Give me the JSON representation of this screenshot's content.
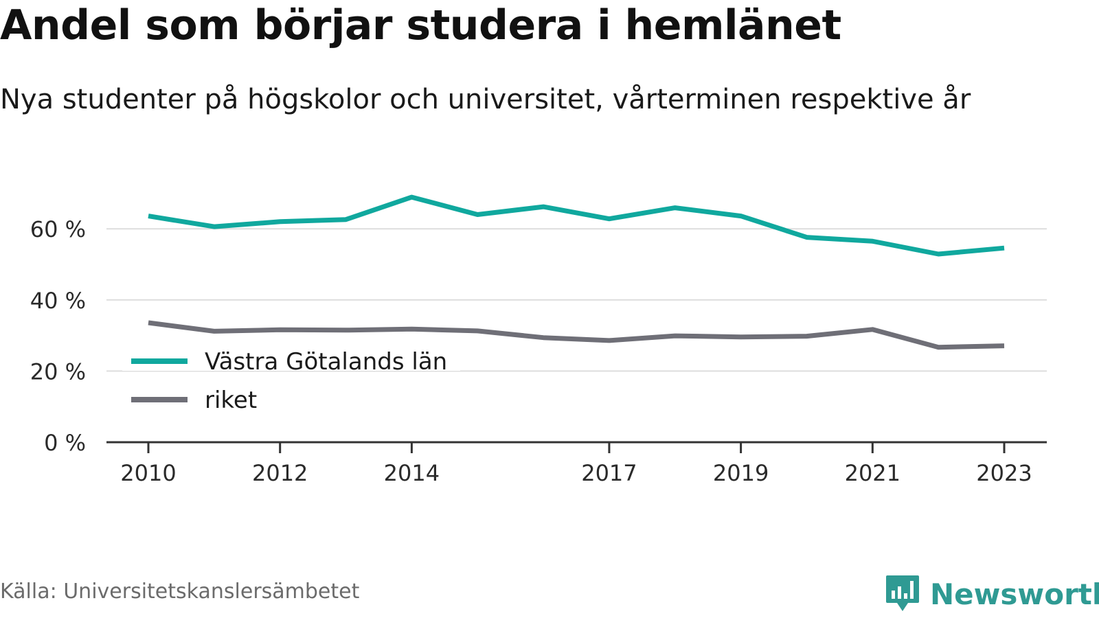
{
  "chart_data": {
    "type": "line",
    "title": "Andel som börjar studera i hemlänet",
    "subtitle": "Nya studenter på högskolor och universitet, vårterminen respektive år",
    "x": [
      2010,
      2011,
      2012,
      2013,
      2014,
      2015,
      2016,
      2017,
      2018,
      2019,
      2020,
      2021,
      2022,
      2023
    ],
    "x_tick_labels": [
      "2010",
      "2012",
      "2014",
      "2017",
      "2019",
      "2021",
      "2023"
    ],
    "x_tick_values": [
      2010,
      2012,
      2014,
      2017,
      2019,
      2021,
      2023
    ],
    "y_ticks": [
      0,
      20,
      40,
      60
    ],
    "y_tick_labels": [
      "0 %",
      "20 %",
      "40 %",
      "60 %"
    ],
    "ylim": [
      0,
      70
    ],
    "grid": "horizontal",
    "legend_position": "bottom-left",
    "series": [
      {
        "name": "Västra Götalands län",
        "color": "#10a89e",
        "values": [
          63.6,
          60.6,
          62.0,
          62.6,
          68.9,
          64.0,
          66.2,
          62.8,
          65.9,
          63.6,
          57.6,
          56.5,
          52.9,
          54.6
        ]
      },
      {
        "name": "riket",
        "color": "#6f6f77",
        "values": [
          33.6,
          31.2,
          31.6,
          31.5,
          31.8,
          31.3,
          29.4,
          28.6,
          29.9,
          29.6,
          29.8,
          31.7,
          26.7,
          27.1
        ]
      }
    ]
  },
  "footer": {
    "source": "Källa: Universitetskanslersämbetet",
    "brand": "Newsworthy",
    "brand_icon": "bar-chart-speech-bubble-icon",
    "brand_color": "#2f9a93"
  }
}
